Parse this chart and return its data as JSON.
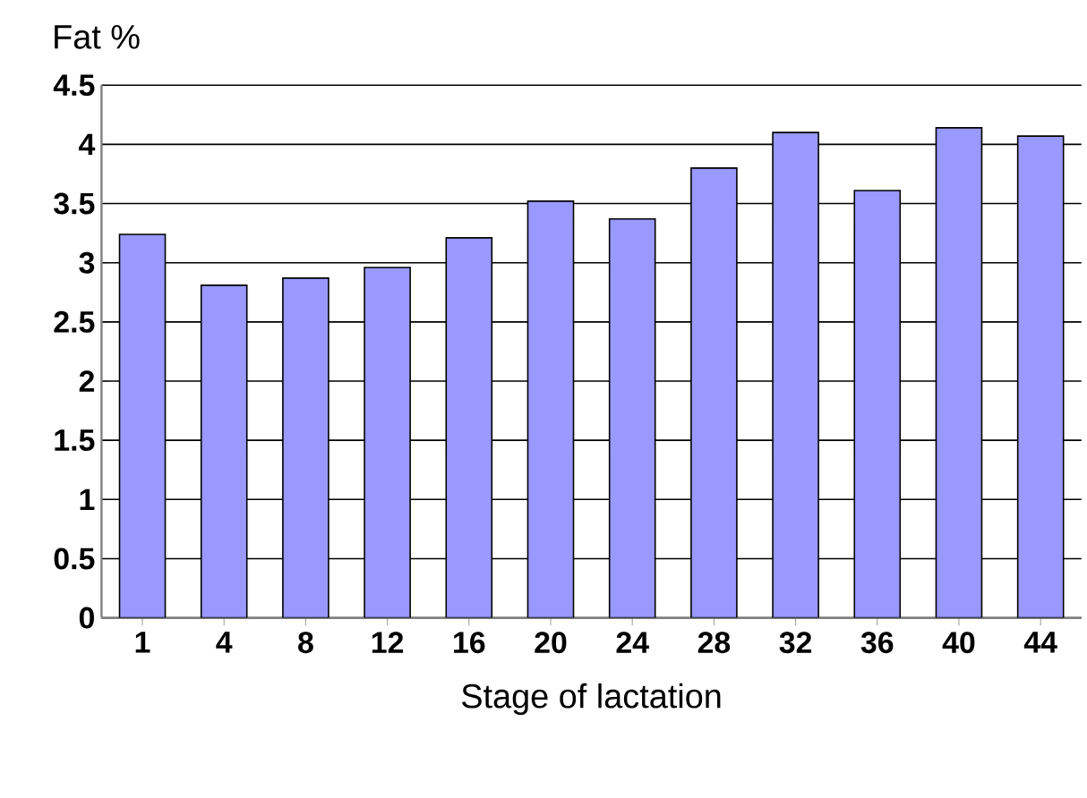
{
  "chart_data": {
    "type": "bar",
    "ylabel": "Fat %",
    "xlabel": "Stage of lactation",
    "categories": [
      "1",
      "4",
      "8",
      "12",
      "16",
      "20",
      "24",
      "28",
      "32",
      "36",
      "40",
      "44"
    ],
    "values": [
      3.24,
      2.81,
      2.87,
      2.96,
      3.21,
      3.52,
      3.37,
      3.8,
      4.1,
      3.61,
      4.14,
      4.07
    ],
    "color": "#9999ff",
    "ylim": [
      0,
      4.5
    ],
    "yticks": [
      0,
      0.5,
      1,
      1.5,
      2,
      2.5,
      3,
      3.5,
      4,
      4.5
    ],
    "grid": "y"
  }
}
